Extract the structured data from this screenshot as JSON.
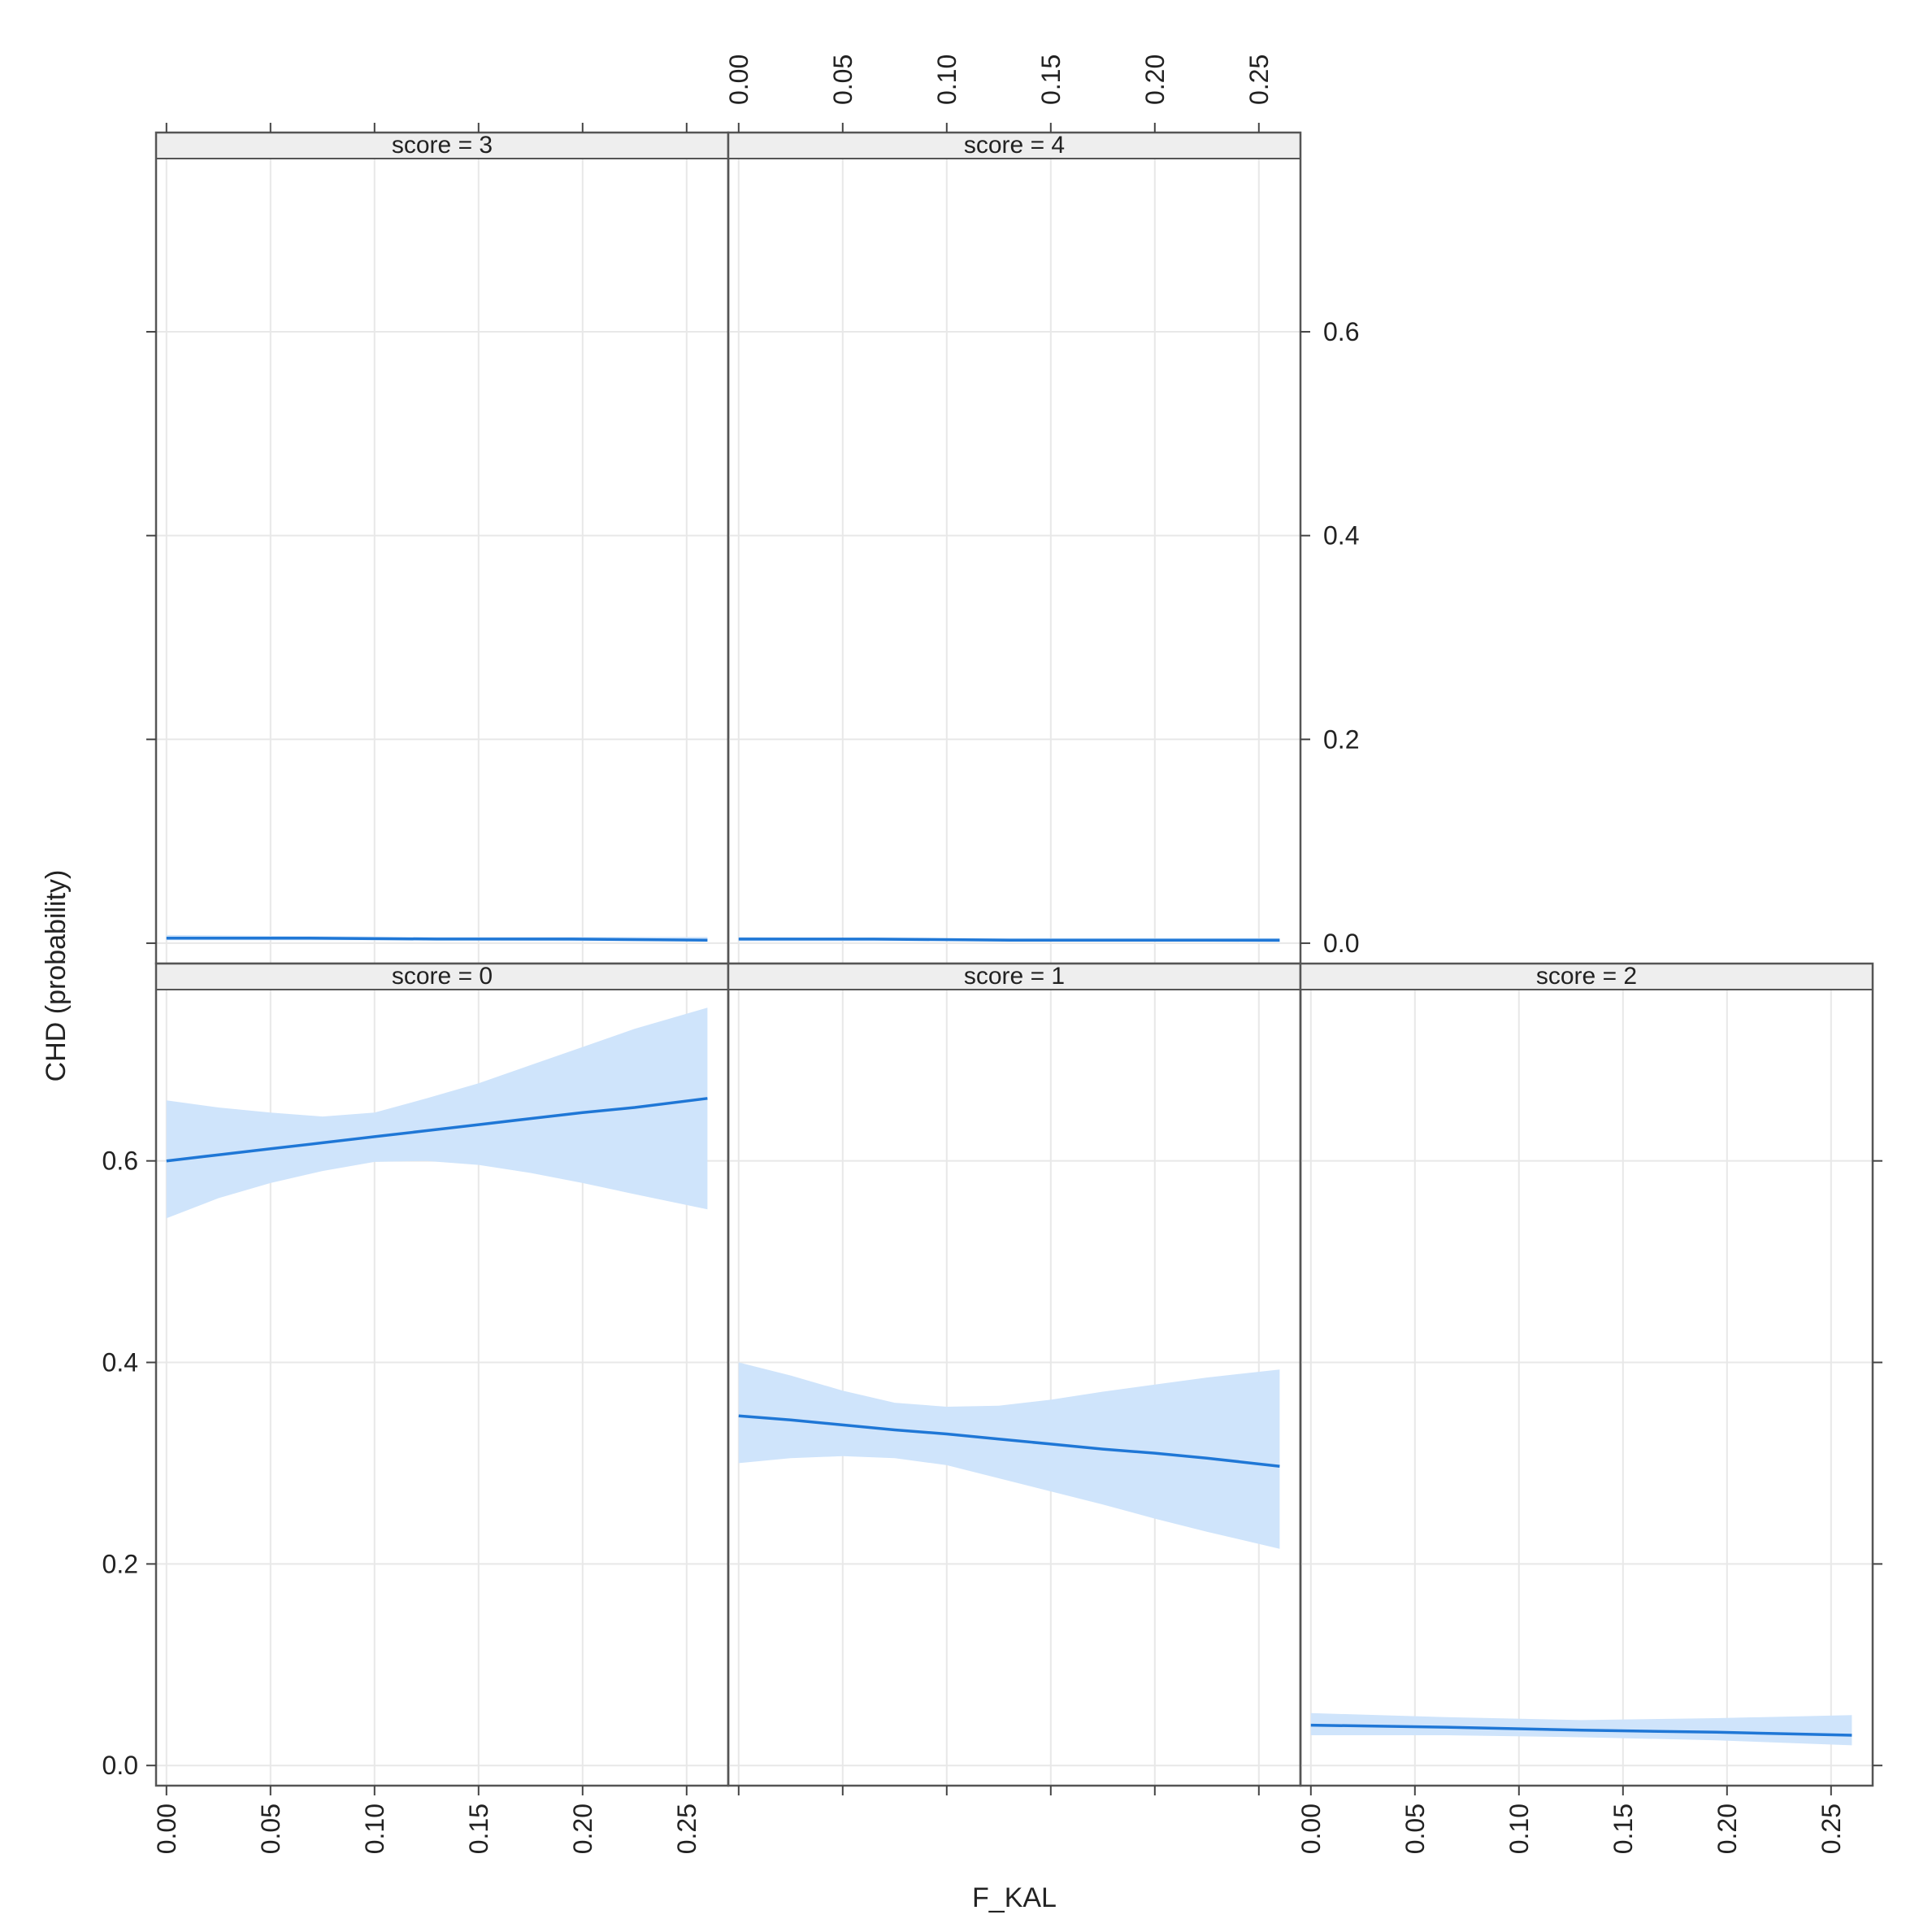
{
  "chart_data": {
    "type": "line",
    "title": "",
    "xlabel": "F_KAL",
    "ylabel": "CHD (probability)",
    "xlim": [
      -0.005,
      0.27
    ],
    "ylim": [
      -0.02,
      0.77
    ],
    "xticks": [
      "0.00",
      "0.05",
      "0.10",
      "0.15",
      "0.20",
      "0.25"
    ],
    "yticks": [
      "0.0",
      "0.2",
      "0.4",
      "0.6"
    ],
    "grid": true,
    "legend": "none",
    "colors": {
      "line": "#1f77d6",
      "band": "#cfe4fb",
      "strip": "#eeeeee",
      "grid": "#e8e8e8",
      "frame": "#555555"
    },
    "panels": [
      {
        "strip": "score = 3",
        "x": [
          0.0,
          0.065,
          0.13,
          0.195,
          0.26
        ],
        "fit": [
          0.005,
          0.005,
          0.004,
          0.004,
          0.003
        ],
        "lower": [
          0.003,
          0.003,
          0.003,
          0.002,
          0.002
        ],
        "upper": [
          0.008,
          0.007,
          0.006,
          0.006,
          0.006
        ]
      },
      {
        "strip": "score = 4",
        "x": [
          0.0,
          0.065,
          0.13,
          0.195,
          0.26
        ],
        "fit": [
          0.004,
          0.004,
          0.003,
          0.003,
          0.003
        ],
        "lower": [
          0.002,
          0.002,
          0.002,
          0.002,
          0.001
        ],
        "upper": [
          0.006,
          0.005,
          0.005,
          0.005,
          0.005
        ]
      },
      {
        "strip": "score = 0",
        "x": [
          0.0,
          0.025,
          0.05,
          0.075,
          0.1,
          0.125,
          0.15,
          0.175,
          0.2,
          0.225,
          0.26
        ],
        "fit": [
          0.6,
          0.606,
          0.612,
          0.618,
          0.624,
          0.63,
          0.636,
          0.642,
          0.648,
          0.653,
          0.662
        ],
        "lower": [
          0.543,
          0.563,
          0.578,
          0.59,
          0.599,
          0.6,
          0.596,
          0.588,
          0.578,
          0.567,
          0.552
        ],
        "upper": [
          0.66,
          0.653,
          0.648,
          0.644,
          0.648,
          0.662,
          0.677,
          0.695,
          0.713,
          0.731,
          0.752
        ]
      },
      {
        "strip": "score = 1",
        "x": [
          0.0,
          0.025,
          0.05,
          0.075,
          0.1,
          0.125,
          0.15,
          0.175,
          0.2,
          0.225,
          0.26
        ],
        "fit": [
          0.347,
          0.343,
          0.338,
          0.333,
          0.329,
          0.324,
          0.319,
          0.314,
          0.31,
          0.305,
          0.297
        ],
        "lower": [
          0.3,
          0.305,
          0.307,
          0.305,
          0.298,
          0.285,
          0.272,
          0.259,
          0.245,
          0.232,
          0.215
        ],
        "upper": [
          0.4,
          0.387,
          0.372,
          0.36,
          0.356,
          0.357,
          0.363,
          0.371,
          0.378,
          0.385,
          0.393
        ]
      },
      {
        "strip": "score = 2",
        "x": [
          0.0,
          0.065,
          0.13,
          0.195,
          0.26
        ],
        "fit": [
          0.04,
          0.038,
          0.035,
          0.033,
          0.03
        ],
        "lower": [
          0.03,
          0.03,
          0.028,
          0.025,
          0.02
        ],
        "upper": [
          0.052,
          0.048,
          0.045,
          0.047,
          0.05
        ]
      }
    ]
  }
}
